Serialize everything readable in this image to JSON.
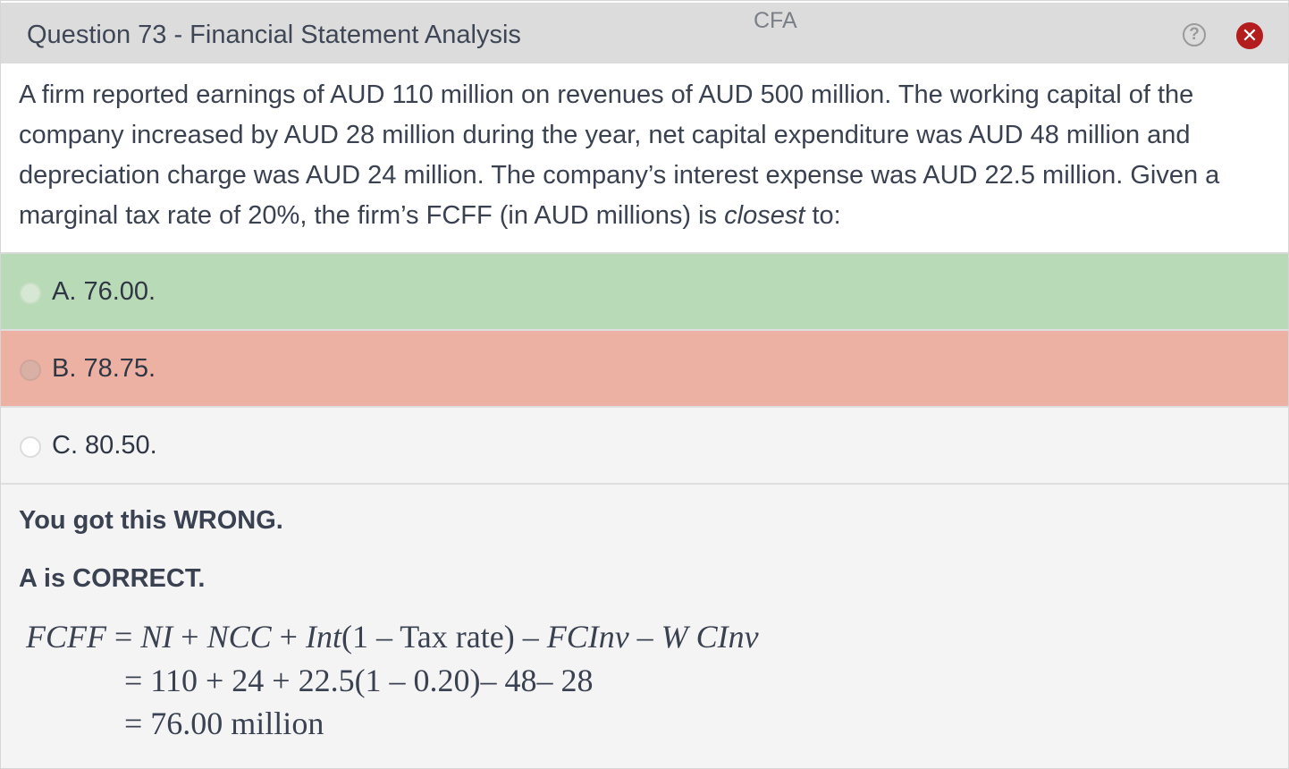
{
  "window": {
    "title": "Question 73 - Financial Statement Analysis",
    "tag": "CFA",
    "help_symbol": "?",
    "close_symbol": "✕",
    "icons": [
      "help-circle-icon",
      "close-circle-icon"
    ]
  },
  "question": {
    "text_before": "A firm reported earnings of AUD 110 million on revenues of AUD 500 million.  The working capital of the company increased by AUD 28 million during the year, net capital expenditure was AUD 48 million and depreciation charge was AUD 24 million.  The company’s interest expense was AUD 22.5 million.  Given a marginal tax rate of 20%, the firm’s FCFF (in AUD millions) is ",
    "emphasis": "closest",
    "text_after": " to:"
  },
  "options": [
    {
      "label": "A. 76.00.",
      "state": "correct"
    },
    {
      "label": "B. 78.75.",
      "state": "selected-wrong"
    },
    {
      "label": "C. 80.50.",
      "state": "unselected"
    }
  ],
  "feedback": {
    "result": "You got this WRONG.",
    "correct_answer": "A is CORRECT.",
    "formula": {
      "line1_lhs": "FCFF",
      "line1_rhs_a": " = ",
      "line1_ni": "NI",
      "line1_plus1": " + ",
      "line1_ncc": "NCC",
      "line1_plus2": " + ",
      "line1_int": "Int",
      "line1_paren": "(1 – Tax rate) – ",
      "line1_fcinv": "FCInv",
      "line1_minus": " – ",
      "line1_wcinv": "W CInv",
      "line2": "= 110 + 24 + 22.5(1 – 0.20)– 48– 28",
      "line3": "= 76.00 million"
    }
  },
  "colors": {
    "correct_bg": "#b9dab6",
    "wrong_bg": "#ecb1a3",
    "titlebar_bg": "#dcdcdc",
    "close_red": "#b31d1d"
  }
}
